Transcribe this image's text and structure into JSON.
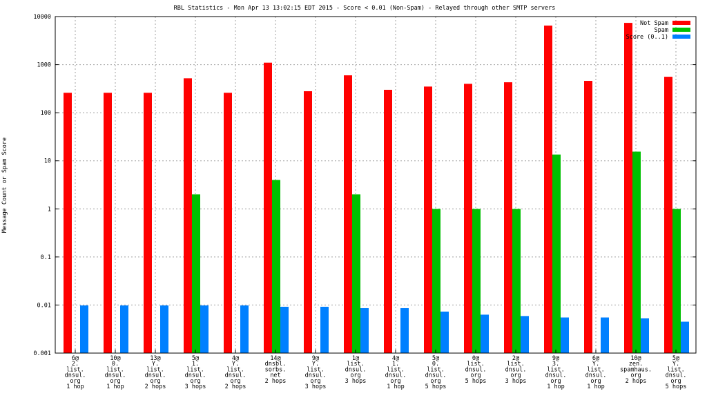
{
  "chart_data": {
    "type": "bar",
    "title": "RBL Statistics - Mon Apr 13 13:02:15 EDT 2015 - Score < 0.01 (Non-Spam) - Relayed through other SMTP servers",
    "ylabel": "Message Count or Spam Score",
    "xlabel": "",
    "yscale": "log",
    "ylim": [
      0.001,
      10000
    ],
    "yticks": [
      "0.001",
      "0.01",
      "0.1",
      "1",
      "10",
      "100",
      "1000",
      "10000"
    ],
    "grid": true,
    "legend_position": "top-right",
    "categories": [
      [
        "6@",
        "2.",
        "list.",
        "dnsul.",
        "org",
        "1 hop"
      ],
      [
        "10@",
        "0.",
        "list.",
        "dnsul.",
        "org",
        "1 hop"
      ],
      [
        "13@",
        "Y.",
        "list.",
        "dnsul.",
        "org",
        "2 hops"
      ],
      [
        "5@",
        "1.",
        "list.",
        "dnsul.",
        "org",
        "3 hops"
      ],
      [
        "4@",
        "Y.",
        "list.",
        "dnsul.",
        "org",
        "2 hops"
      ],
      [
        "14@",
        "dnsbl.",
        "sorbs.",
        "net",
        "2 hops"
      ],
      [
        "9@",
        "Y.",
        "list.",
        "dnsul.",
        "org",
        "3 hops"
      ],
      [
        "1@",
        "list.",
        "dnsul.",
        "org",
        "3 hops"
      ],
      [
        "4@",
        "1.",
        "list.",
        "dnsul.",
        "org",
        "1 hop"
      ],
      [
        "5@",
        "0.",
        "list.",
        "dnsul.",
        "org",
        "5 hops"
      ],
      [
        "0@",
        "list.",
        "dnsul.",
        "org",
        "5 hops"
      ],
      [
        "2@",
        "list.",
        "dnsul.",
        "org",
        "3 hops"
      ],
      [
        "9@",
        "3.",
        "list.",
        "dnsul.",
        "org",
        "1 hop"
      ],
      [
        "6@",
        "Y.",
        "list.",
        "dnsul.",
        "org",
        "1 hop"
      ],
      [
        "10@",
        "zen.",
        "spamhaus.",
        "org",
        "2 hops"
      ],
      [
        "5@",
        "Y.",
        "list.",
        "dnsul.",
        "org",
        "5 hops"
      ]
    ],
    "series": [
      {
        "name": "Not Spam",
        "color": "#ff0000",
        "values": [
          260,
          260,
          260,
          520,
          260,
          1100,
          280,
          600,
          300,
          350,
          400,
          430,
          6500,
          460,
          7400,
          560
        ]
      },
      {
        "name": "Spam",
        "color": "#00c000",
        "values": [
          null,
          null,
          null,
          2,
          null,
          4,
          null,
          2,
          null,
          1,
          1,
          1,
          13.5,
          null,
          15.5,
          1
        ]
      },
      {
        "name": "Score (0..1)",
        "color": "#0080ff",
        "values": [
          0.0098,
          0.0098,
          0.0098,
          0.0098,
          0.0098,
          0.0092,
          0.0092,
          0.0086,
          0.0086,
          0.0073,
          0.0063,
          0.0059,
          0.0055,
          0.0055,
          0.0053,
          0.0045
        ]
      }
    ]
  }
}
